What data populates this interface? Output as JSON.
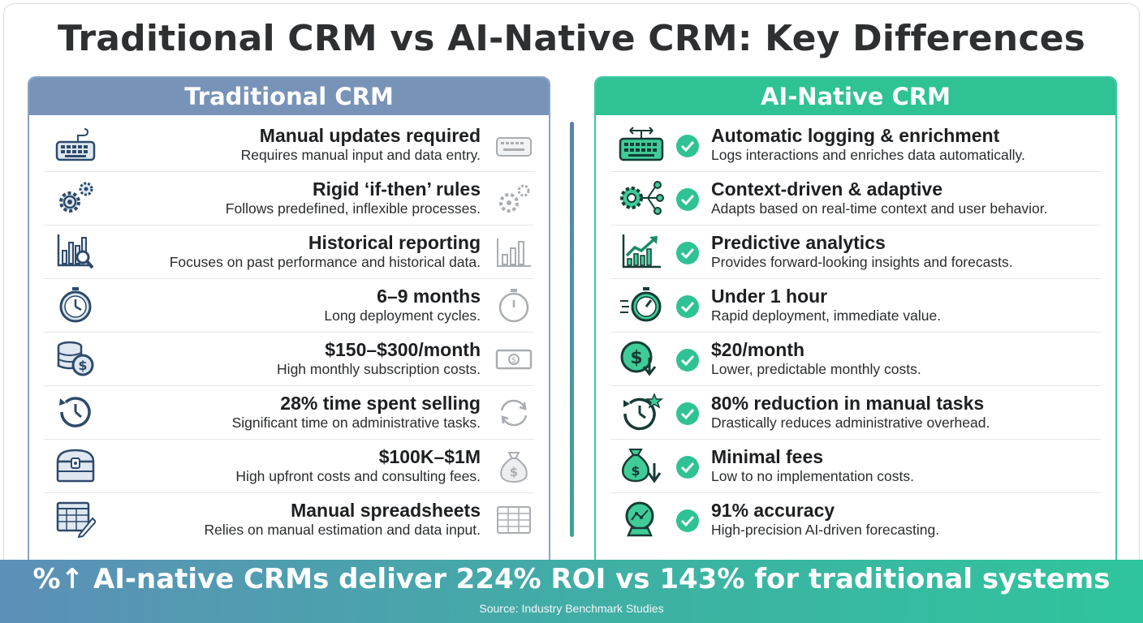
{
  "title": "Traditional CRM vs AI-Native CRM: Key Differences",
  "left_panel": {
    "heading": "Traditional CRM",
    "rows": [
      {
        "icon": "keyboard-icon",
        "title": "Manual updates required",
        "desc": "Requires manual input and data entry."
      },
      {
        "icon": "gears-icon",
        "title": "Rigid ‘if-then’ rules",
        "desc": "Follows predefined, inflexible processes."
      },
      {
        "icon": "bar-chart-magnifier-icon",
        "title": "Historical reporting",
        "desc": "Focuses on past performance and historical data."
      },
      {
        "icon": "stopwatch-icon",
        "title": "6–9 months",
        "desc": "Long deployment cycles."
      },
      {
        "icon": "coin-stack-icon",
        "title": "$150–$300/month",
        "desc": "High monthly subscription costs."
      },
      {
        "icon": "history-clock-icon",
        "title": "28% time spent selling",
        "desc": "Significant time on administrative tasks."
      },
      {
        "icon": "treasure-chest-icon",
        "title": "$100K–$1M",
        "desc": "High upfront costs and consulting fees."
      },
      {
        "icon": "spreadsheet-pencil-icon",
        "title": "Manual spreadsheets",
        "desc": "Relies on manual estimation and data input."
      }
    ]
  },
  "right_panel": {
    "heading": "AI-Native CRM",
    "rows": [
      {
        "icon": "smart-keyboard-icon",
        "title": "Automatic logging & enrichment",
        "desc": "Logs interactions and enriches data automatically."
      },
      {
        "icon": "gear-network-icon",
        "title": "Context-driven & adaptive",
        "desc": "Adapts based on real-time context and user behavior."
      },
      {
        "icon": "trend-up-chart-icon",
        "title": "Predictive analytics",
        "desc": "Provides forward-looking insights and forecasts."
      },
      {
        "icon": "fast-stopwatch-icon",
        "title": "Under 1 hour",
        "desc": "Rapid deployment, immediate value."
      },
      {
        "icon": "dollar-down-icon",
        "title": "$20/month",
        "desc": "Lower, predictable monthly costs."
      },
      {
        "icon": "clock-star-icon",
        "title": "80% reduction in manual tasks",
        "desc": "Drastically reduces administrative overhead."
      },
      {
        "icon": "money-bag-down-icon",
        "title": "Minimal fees",
        "desc": "Low to no implementation costs."
      },
      {
        "icon": "crystal-ball-icon",
        "title": "91% accuracy",
        "desc": "High-precision AI-driven forecasting."
      }
    ]
  },
  "footer": {
    "headline": "%↑ AI-native CRMs deliver 224% ROI vs 143% for traditional systems",
    "source": "Source: Industry Benchmark Studies"
  },
  "colors": {
    "traditional_accent": "#7893b8",
    "ai_accent": "#2fc294",
    "icon_navy": "#2d4a6b",
    "icon_green": "#1a8a68",
    "ghost_gray": "#a9adb1"
  }
}
